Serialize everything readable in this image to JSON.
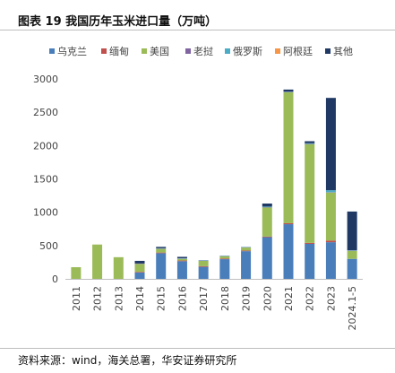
{
  "title": "图表 19 我国历年玉米进口量（万吨）",
  "source": "资料来源：wind，海关总署，华安证券研究所",
  "chart_data": {
    "type": "bar",
    "stacked": true,
    "categories": [
      "2011",
      "2012",
      "2013",
      "2014",
      "2015",
      "2016",
      "2017",
      "2018",
      "2019",
      "2020",
      "2021",
      "2022",
      "2023",
      "2024.1-5"
    ],
    "series": [
      {
        "name": "乌克兰",
        "color": "#4a7ebb",
        "values": [
          0,
          0,
          0,
          95,
          385,
          265,
          180,
          295,
          415,
          625,
          820,
          525,
          550,
          300
        ]
      },
      {
        "name": "缅甸",
        "color": "#c0504d",
        "values": [
          0,
          0,
          0,
          10,
          10,
          10,
          10,
          10,
          10,
          10,
          15,
          15,
          25,
          0
        ]
      },
      {
        "name": "美国",
        "color": "#9bbb59",
        "values": [
          175,
          515,
          325,
          120,
          55,
          25,
          80,
          35,
          45,
          435,
          1965,
          1480,
          720,
          120
        ]
      },
      {
        "name": "老挝",
        "color": "#8064a2",
        "values": [
          0,
          0,
          0,
          5,
          5,
          5,
          5,
          5,
          5,
          5,
          5,
          5,
          5,
          5
        ]
      },
      {
        "name": "俄罗斯",
        "color": "#4bacc6",
        "values": [
          0,
          0,
          0,
          0,
          5,
          5,
          5,
          5,
          5,
          10,
          5,
          10,
          30,
          5
        ]
      },
      {
        "name": "阿根廷",
        "color": "#f79646",
        "values": [
          0,
          0,
          0,
          0,
          0,
          0,
          0,
          0,
          0,
          0,
          0,
          0,
          0,
          0
        ]
      },
      {
        "name": "其他",
        "color": "#1f3864",
        "values": [
          0,
          0,
          0,
          40,
          20,
          20,
          0,
          0,
          0,
          45,
          30,
          30,
          1385,
          580
        ]
      }
    ],
    "ylim": [
      0,
      3000
    ],
    "yticks": [
      0,
      500,
      1000,
      1500,
      2000,
      2500,
      3000
    ],
    "legend_position": "top",
    "grid": false
  }
}
